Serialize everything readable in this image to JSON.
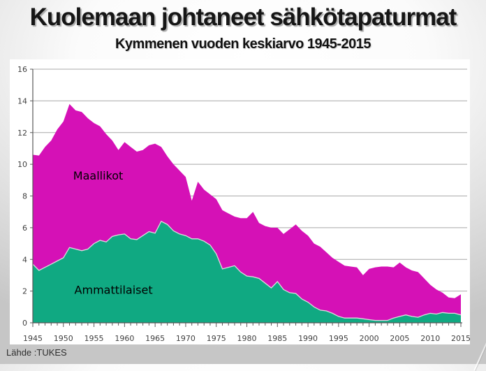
{
  "slide": {
    "title": "Kuolemaan johtaneet sähkötapaturmat",
    "subtitle": "Kymmenen vuoden keskiarvo 1945-2015",
    "source": "Lähde :TUKES"
  },
  "chart_data": {
    "type": "area",
    "stacked": true,
    "title": "",
    "xlabel": "",
    "ylabel": "",
    "ylim": [
      0,
      16
    ],
    "yticks": [
      0,
      2,
      4,
      6,
      8,
      10,
      12,
      14,
      16
    ],
    "xticks": [
      1945,
      1950,
      1955,
      1960,
      1965,
      1970,
      1975,
      1980,
      1985,
      1990,
      1995,
      2000,
      2005,
      2010,
      2015
    ],
    "grid": true,
    "legend_position": "labels-inside-areas",
    "years": [
      1945,
      1946,
      1947,
      1948,
      1949,
      1950,
      1951,
      1952,
      1953,
      1954,
      1955,
      1956,
      1957,
      1958,
      1959,
      1960,
      1961,
      1962,
      1963,
      1964,
      1965,
      1966,
      1967,
      1968,
      1969,
      1970,
      1971,
      1972,
      1973,
      1974,
      1975,
      1976,
      1977,
      1978,
      1979,
      1980,
      1981,
      1982,
      1983,
      1984,
      1985,
      1986,
      1987,
      1988,
      1989,
      1990,
      1991,
      1992,
      1993,
      1994,
      1995,
      1996,
      1997,
      1998,
      1999,
      2000,
      2001,
      2002,
      2003,
      2004,
      2005,
      2006,
      2007,
      2008,
      2009,
      2010,
      2011,
      2012,
      2013,
      2014,
      2015
    ],
    "series": [
      {
        "name": "Ammattilaiset",
        "color": "#10a982",
        "values": [
          3.7,
          3.3,
          3.5,
          3.7,
          3.9,
          4.1,
          4.75,
          4.65,
          4.55,
          4.65,
          5.0,
          5.2,
          5.1,
          5.45,
          5.55,
          5.6,
          5.3,
          5.25,
          5.5,
          5.75,
          5.65,
          6.4,
          6.2,
          5.8,
          5.6,
          5.5,
          5.3,
          5.3,
          5.15,
          4.9,
          4.35,
          3.4,
          3.5,
          3.6,
          3.2,
          2.95,
          2.9,
          2.8,
          2.5,
          2.2,
          2.6,
          2.1,
          1.9,
          1.85,
          1.5,
          1.3,
          1.0,
          0.8,
          0.75,
          0.6,
          0.4,
          0.3,
          0.3,
          0.3,
          0.25,
          0.2,
          0.15,
          0.15,
          0.15,
          0.3,
          0.4,
          0.5,
          0.4,
          0.35,
          0.5,
          0.6,
          0.55,
          0.65,
          0.6,
          0.6,
          0.5
        ]
      },
      {
        "name": "Maallikot",
        "color": "#d511b6",
        "values": [
          6.9,
          7.25,
          7.6,
          7.8,
          8.3,
          8.6,
          9.05,
          8.75,
          8.75,
          8.25,
          7.6,
          7.2,
          6.8,
          6.05,
          5.35,
          5.8,
          5.8,
          5.55,
          5.4,
          5.45,
          5.65,
          4.7,
          4.3,
          4.2,
          4.0,
          3.7,
          2.4,
          3.6,
          3.25,
          3.2,
          3.45,
          3.7,
          3.4,
          3.1,
          3.4,
          3.65,
          4.1,
          3.5,
          3.6,
          3.8,
          3.4,
          3.5,
          4.0,
          4.35,
          4.3,
          4.2,
          4.0,
          4.0,
          3.7,
          3.5,
          3.45,
          3.3,
          3.25,
          3.2,
          2.75,
          3.2,
          3.35,
          3.4,
          3.4,
          3.2,
          3.4,
          3.0,
          2.9,
          2.85,
          2.3,
          1.8,
          1.55,
          1.25,
          1.0,
          0.95,
          1.3
        ]
      }
    ],
    "labels": [
      {
        "text": "Maallikot",
        "x": 1951.6,
        "y": 9.3
      },
      {
        "text": "Ammattilaiset",
        "x": 1951.8,
        "y": 2.1
      }
    ],
    "colors": {
      "gridline": "#a8a8a8",
      "axis": "#595959",
      "tick_label": "#3f3f3f",
      "series_edge": "#dcdcdc",
      "plot_background": "#ffffff"
    }
  }
}
